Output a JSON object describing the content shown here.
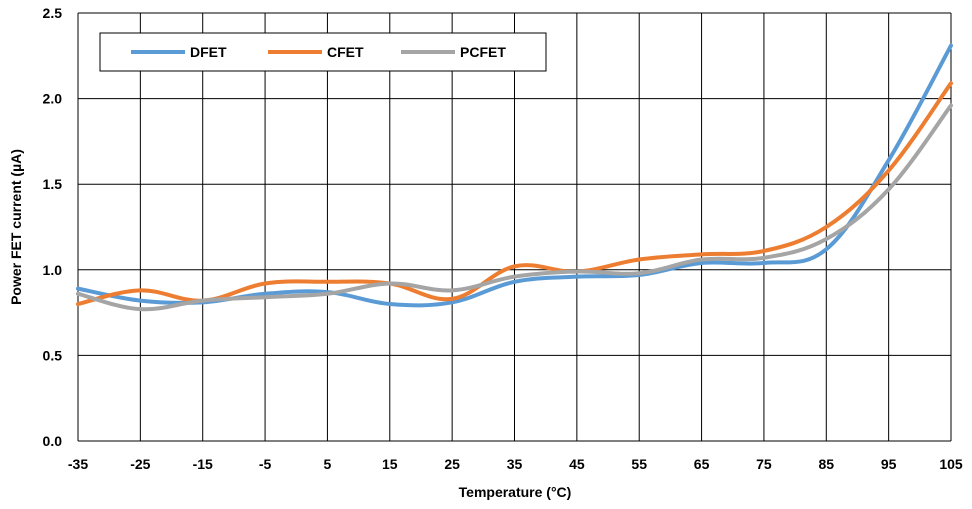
{
  "chart_data": {
    "type": "line",
    "xlabel": "Temperature (°C)",
    "ylabel": "Power FET current (µA)",
    "x": [
      -35,
      -25,
      -15,
      -5,
      5,
      15,
      25,
      35,
      45,
      55,
      65,
      75,
      85,
      95,
      105
    ],
    "ylim": [
      0.0,
      2.5
    ],
    "yticks": [
      "0.0",
      "0.5",
      "1.0",
      "1.5",
      "2.0",
      "2.5"
    ],
    "xticks": [
      "-35",
      "-25",
      "-15",
      "-5",
      "5",
      "15",
      "25",
      "35",
      "45",
      "55",
      "65",
      "75",
      "85",
      "95",
      "105"
    ],
    "grid": true,
    "legend_position": "top-left",
    "series": [
      {
        "name": "DFET",
        "color": "#5B9BD5",
        "values": [
          0.89,
          0.82,
          0.81,
          0.86,
          0.87,
          0.8,
          0.81,
          0.93,
          0.96,
          0.97,
          1.04,
          1.04,
          1.12,
          1.64,
          2.31
        ]
      },
      {
        "name": "CFET",
        "color": "#ED7D31",
        "values": [
          0.8,
          0.88,
          0.82,
          0.92,
          0.93,
          0.92,
          0.83,
          1.02,
          0.99,
          1.06,
          1.09,
          1.11,
          1.25,
          1.58,
          2.09
        ]
      },
      {
        "name": "PCFET",
        "color": "#A5A5A5",
        "values": [
          0.86,
          0.77,
          0.82,
          0.84,
          0.86,
          0.92,
          0.88,
          0.96,
          0.99,
          0.98,
          1.06,
          1.07,
          1.18,
          1.47,
          1.96
        ]
      }
    ]
  }
}
